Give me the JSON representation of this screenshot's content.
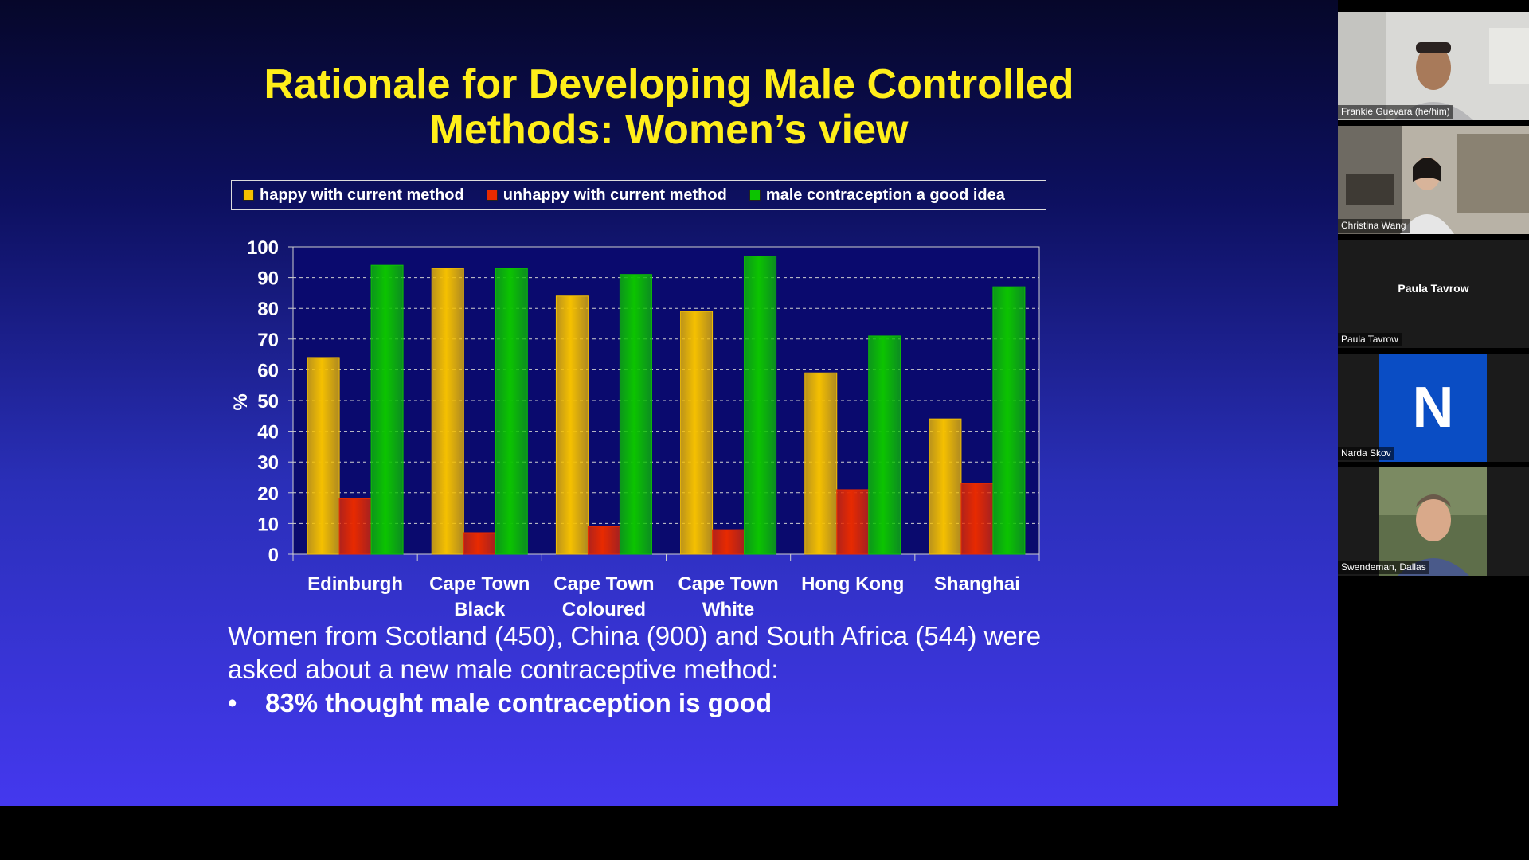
{
  "slide": {
    "title_line1": "Rationale for Developing Male Controlled",
    "title_line2": "Methods: Women’s view",
    "body_line1": "Women from Scotland (450), China (900) and South Africa (544) were",
    "body_line2": "asked about a new male contraceptive method:",
    "bullet_mark": "•",
    "bullet_text": "83% thought male contraception is good"
  },
  "legend": {
    "items": [
      {
        "label": "happy with current method",
        "color": "#f5c000"
      },
      {
        "label": "unhappy with current method",
        "color": "#e82a00"
      },
      {
        "label": "male contraception a good idea",
        "color": "#0cc400"
      }
    ]
  },
  "chart_data": {
    "type": "bar",
    "categories": [
      [
        "Edinburgh"
      ],
      [
        "Cape Town",
        "Black"
      ],
      [
        "Cape Town",
        "Coloured"
      ],
      [
        "Cape Town",
        "White"
      ],
      [
        "Hong Kong"
      ],
      [
        "Shanghai"
      ]
    ],
    "series": [
      {
        "name": "happy with current method",
        "color": "#f5c000",
        "values": [
          64,
          93,
          84,
          79,
          59,
          44
        ]
      },
      {
        "name": "unhappy with current method",
        "color": "#e82a00",
        "values": [
          18,
          7,
          9,
          8,
          21,
          23
        ]
      },
      {
        "name": "male contraception a good idea",
        "color": "#0cc400",
        "values": [
          94,
          93,
          91,
          97,
          71,
          87
        ]
      }
    ],
    "ylabel": "%",
    "ylim": [
      0,
      100
    ],
    "yticks": [
      0,
      10,
      20,
      30,
      40,
      50,
      60,
      70,
      80,
      90,
      100
    ],
    "grid": true,
    "legend_position": "top",
    "plot_background": "#0a0a6e"
  },
  "participants": [
    {
      "name": "Frankie Guevara (he/him)",
      "kind": "video"
    },
    {
      "name": "Christina Wang",
      "kind": "video"
    },
    {
      "name": "Paula Tavrow",
      "kind": "name-only",
      "display_name": "Paula Tavrow"
    },
    {
      "name": "Narda Skov",
      "kind": "avatar",
      "initial": "N"
    },
    {
      "name": "Swendeman, Dallas",
      "kind": "video"
    }
  ]
}
